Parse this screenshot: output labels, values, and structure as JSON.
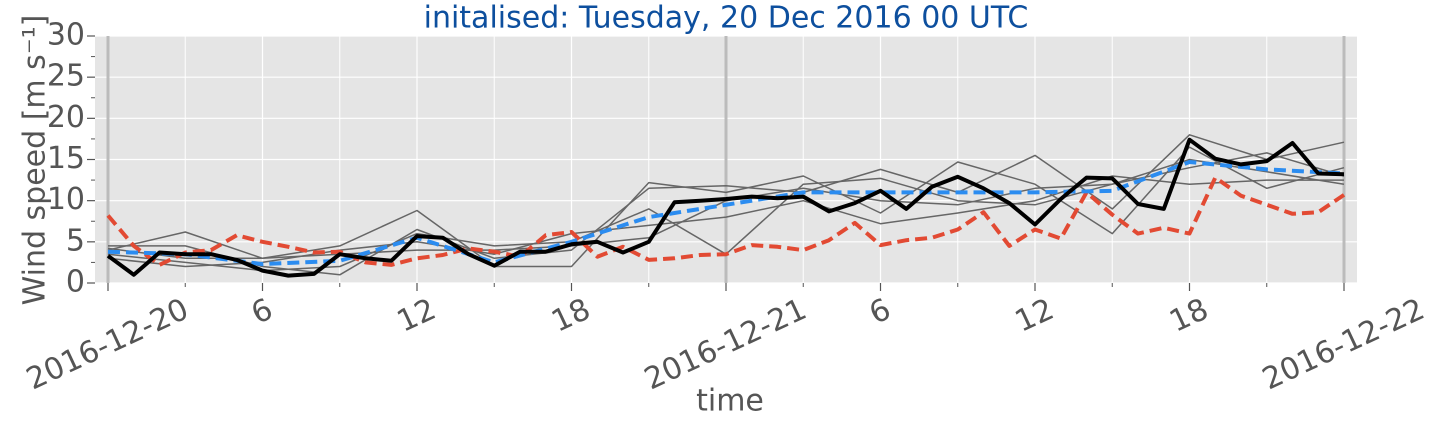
{
  "chart_data": {
    "type": "line",
    "title": "initalised: Tuesday, 20 Dec 2016 00 UTC",
    "xlabel": "time",
    "ylabel": "Wind speed [m s⁻¹]",
    "xlim": [
      "2016-12-20T00",
      "2016-12-22T00"
    ],
    "xticks": [
      {
        "value": "2016-12-20T00",
        "label": "2016-12-20"
      },
      {
        "value": "2016-12-20T06",
        "label": "6"
      },
      {
        "value": "2016-12-20T12",
        "label": "12"
      },
      {
        "value": "2016-12-20T18",
        "label": "18"
      },
      {
        "value": "2016-12-21T00",
        "label": "2016-12-21"
      },
      {
        "value": "2016-12-21T06",
        "label": "6"
      },
      {
        "value": "2016-12-21T12",
        "label": "12"
      },
      {
        "value": "2016-12-21T18",
        "label": "18"
      },
      {
        "value": "2016-12-22T00",
        "label": "2016-12-22"
      }
    ],
    "xminorticks": [
      "2016-12-20T03",
      "2016-12-20T09",
      "2016-12-20T15",
      "2016-12-20T21",
      "2016-12-21T03",
      "2016-12-21T09",
      "2016-12-21T15",
      "2016-12-21T21"
    ],
    "ylim": [
      0,
      30
    ],
    "yticks": [
      0,
      5,
      10,
      15,
      20,
      25,
      30
    ],
    "yminorticks": [
      2.5,
      7.5,
      12.5,
      17.5,
      22.5,
      27.5
    ],
    "grid": true,
    "series": [
      {
        "color": "#666666",
        "style": "solid",
        "x": [
          "2016-12-20T00",
          "2016-12-20T03",
          "2016-12-20T06",
          "2016-12-20T09",
          "2016-12-20T12",
          "2016-12-20T15",
          "2016-12-20T18",
          "2016-12-20T21",
          "2016-12-21T00",
          "2016-12-21T03",
          "2016-12-21T06",
          "2016-12-21T09",
          "2016-12-21T12",
          "2016-12-21T15",
          "2016-12-21T18",
          "2016-12-21T21",
          "2016-12-22T00"
        ],
        "values": [
          4.5,
          4.5,
          2.0,
          1.0,
          6.5,
          3.0,
          4.0,
          11.5,
          11.8,
          11.0,
          13.8,
          11.0,
          15.5,
          9.0,
          18.0,
          15.0,
          17.1
        ]
      },
      {
        "color": "#666666",
        "style": "solid",
        "x": [
          "2016-12-20T00",
          "2016-12-20T03",
          "2016-12-20T06",
          "2016-12-20T09",
          "2016-12-20T12",
          "2016-12-20T15",
          "2016-12-20T18",
          "2016-12-20T21",
          "2016-12-21T00",
          "2016-12-21T03",
          "2016-12-21T06",
          "2016-12-21T09",
          "2016-12-21T12",
          "2016-12-21T15",
          "2016-12-21T18",
          "2016-12-21T21",
          "2016-12-22T00"
        ],
        "values": [
          4.0,
          6.2,
          3.0,
          4.5,
          8.8,
          2.0,
          2.0,
          12.2,
          11.0,
          13.0,
          8.5,
          14.7,
          12.0,
          6.0,
          16.5,
          11.5,
          14.0
        ]
      },
      {
        "color": "#666666",
        "style": "solid",
        "x": [
          "2016-12-20T00",
          "2016-12-20T03",
          "2016-12-20T06",
          "2016-12-20T09",
          "2016-12-20T12",
          "2016-12-20T15",
          "2016-12-20T18",
          "2016-12-20T21",
          "2016-12-21T00",
          "2016-12-21T03",
          "2016-12-21T06",
          "2016-12-21T09",
          "2016-12-21T12",
          "2016-12-21T15",
          "2016-12-21T18",
          "2016-12-21T21",
          "2016-12-22T00"
        ],
        "values": [
          3.5,
          2.5,
          1.5,
          2.0,
          6.0,
          4.5,
          5.0,
          9.0,
          3.5,
          12.0,
          12.7,
          10.0,
          9.5,
          12.0,
          14.0,
          15.8,
          13.0
        ]
      },
      {
        "color": "#666666",
        "style": "solid",
        "x": [
          "2016-12-20T00",
          "2016-12-20T03",
          "2016-12-20T06",
          "2016-12-20T09",
          "2016-12-20T12",
          "2016-12-20T15",
          "2016-12-20T18",
          "2016-12-20T21",
          "2016-12-21T00",
          "2016-12-21T03",
          "2016-12-21T06",
          "2016-12-21T09",
          "2016-12-21T12",
          "2016-12-21T15",
          "2016-12-21T18",
          "2016-12-21T21",
          "2016-12-22T00"
        ],
        "values": [
          3.0,
          2.0,
          2.5,
          4.0,
          5.0,
          3.5,
          6.0,
          7.0,
          8.0,
          10.0,
          7.2,
          8.5,
          10.0,
          13.0,
          12.0,
          12.5,
          12.5
        ]
      },
      {
        "color": "#666666",
        "style": "solid",
        "x": [
          "2016-12-20T00",
          "2016-12-20T03",
          "2016-12-20T06",
          "2016-12-20T09",
          "2016-12-20T12",
          "2016-12-20T15",
          "2016-12-20T18",
          "2016-12-20T21",
          "2016-12-21T00",
          "2016-12-21T03",
          "2016-12-21T06",
          "2016-12-21T09",
          "2016-12-21T12",
          "2016-12-21T15",
          "2016-12-21T18",
          "2016-12-21T21",
          "2016-12-22T00"
        ],
        "values": [
          4.2,
          3.0,
          3.0,
          3.5,
          4.0,
          4.0,
          4.5,
          5.5,
          10.0,
          11.5,
          10.0,
          9.5,
          11.5,
          12.0,
          15.0,
          13.5,
          12.0
        ]
      },
      {
        "color": "#e24a33",
        "style": "dashed",
        "x": [
          "2016-12-20T00",
          "2016-12-20T01",
          "2016-12-20T02",
          "2016-12-20T03",
          "2016-12-20T04",
          "2016-12-20T05",
          "2016-12-20T06",
          "2016-12-20T07",
          "2016-12-20T08",
          "2016-12-20T09",
          "2016-12-20T10",
          "2016-12-20T11",
          "2016-12-20T12",
          "2016-12-20T13",
          "2016-12-20T14",
          "2016-12-20T15",
          "2016-12-20T16",
          "2016-12-20T17",
          "2016-12-20T18",
          "2016-12-20T19",
          "2016-12-20T20",
          "2016-12-20T21",
          "2016-12-20T22",
          "2016-12-20T23",
          "2016-12-21T00",
          "2016-12-21T01",
          "2016-12-21T02",
          "2016-12-21T03",
          "2016-12-21T04",
          "2016-12-21T05",
          "2016-12-21T06",
          "2016-12-21T07",
          "2016-12-21T08",
          "2016-12-21T09",
          "2016-12-21T10",
          "2016-12-21T11",
          "2016-12-21T12",
          "2016-12-21T13",
          "2016-12-21T14",
          "2016-12-21T15",
          "2016-12-21T16",
          "2016-12-21T17",
          "2016-12-21T18",
          "2016-12-21T19",
          "2016-12-21T20",
          "2016-12-21T21",
          "2016-12-21T22",
          "2016-12-21T23",
          "2016-12-22T00"
        ],
        "values": [
          8.2,
          4.5,
          2.2,
          3.7,
          4.0,
          5.8,
          5.0,
          4.4,
          3.7,
          3.8,
          2.5,
          2.2,
          3.0,
          3.4,
          4.2,
          3.8,
          3.2,
          5.8,
          6.2,
          3.2,
          4.4,
          2.8,
          3.0,
          3.4,
          3.5,
          4.6,
          4.4,
          4.0,
          5.2,
          7.3,
          4.6,
          5.2,
          5.5,
          6.5,
          8.6,
          4.5,
          6.5,
          5.4,
          11.0,
          8.3,
          6.0,
          6.7,
          6.0,
          12.8,
          10.6,
          9.5,
          8.4,
          8.6,
          10.7
        ]
      },
      {
        "color": "#2b8cf0",
        "style": "dashed",
        "x": [
          "2016-12-20T00",
          "2016-12-20T03",
          "2016-12-20T06",
          "2016-12-20T09",
          "2016-12-20T12",
          "2016-12-20T15",
          "2016-12-20T18",
          "2016-12-20T21",
          "2016-12-21T00",
          "2016-12-21T03",
          "2016-12-21T06",
          "2016-12-21T09",
          "2016-12-21T12",
          "2016-12-21T15",
          "2016-12-21T18",
          "2016-12-21T21",
          "2016-12-22T00"
        ],
        "values": [
          3.8,
          3.5,
          2.3,
          2.7,
          5.5,
          2.5,
          5.0,
          8.0,
          9.5,
          11.0,
          11.0,
          11.0,
          11.0,
          11.2,
          14.7,
          13.8,
          13.3
        ]
      },
      {
        "color": "#000000",
        "style": "bold",
        "x": [
          "2016-12-20T00",
          "2016-12-20T01",
          "2016-12-20T02",
          "2016-12-20T03",
          "2016-12-20T04",
          "2016-12-20T05",
          "2016-12-20T06",
          "2016-12-20T07",
          "2016-12-20T08",
          "2016-12-20T09",
          "2016-12-20T10",
          "2016-12-20T11",
          "2016-12-20T12",
          "2016-12-20T13",
          "2016-12-20T14",
          "2016-12-20T15",
          "2016-12-20T16",
          "2016-12-20T17",
          "2016-12-20T18",
          "2016-12-20T19",
          "2016-12-20T20",
          "2016-12-20T21",
          "2016-12-20T22",
          "2016-12-20T23",
          "2016-12-21T00",
          "2016-12-21T01",
          "2016-12-21T02",
          "2016-12-21T03",
          "2016-12-21T04",
          "2016-12-21T05",
          "2016-12-21T06",
          "2016-12-21T07",
          "2016-12-21T08",
          "2016-12-21T09",
          "2016-12-21T10",
          "2016-12-21T11",
          "2016-12-21T12",
          "2016-12-21T13",
          "2016-12-21T14",
          "2016-12-21T15",
          "2016-12-21T16",
          "2016-12-21T17",
          "2016-12-21T18",
          "2016-12-21T19",
          "2016-12-21T20",
          "2016-12-21T21",
          "2016-12-21T22",
          "2016-12-21T23",
          "2016-12-22T00"
        ],
        "values": [
          3.3,
          1.0,
          3.7,
          3.5,
          3.5,
          2.8,
          1.5,
          0.9,
          1.1,
          3.5,
          3.0,
          2.7,
          5.7,
          5.5,
          3.5,
          2.1,
          3.8,
          3.8,
          4.7,
          5.0,
          3.7,
          5.0,
          9.8,
          10.0,
          10.2,
          10.5,
          10.3,
          10.5,
          8.7,
          9.7,
          11.2,
          9.0,
          11.7,
          12.9,
          11.5,
          9.7,
          7.1,
          10.2,
          12.8,
          12.7,
          9.6,
          9.0,
          17.4,
          15.1,
          14.4,
          14.8,
          17.0,
          13.3,
          13.2
        ]
      }
    ]
  }
}
